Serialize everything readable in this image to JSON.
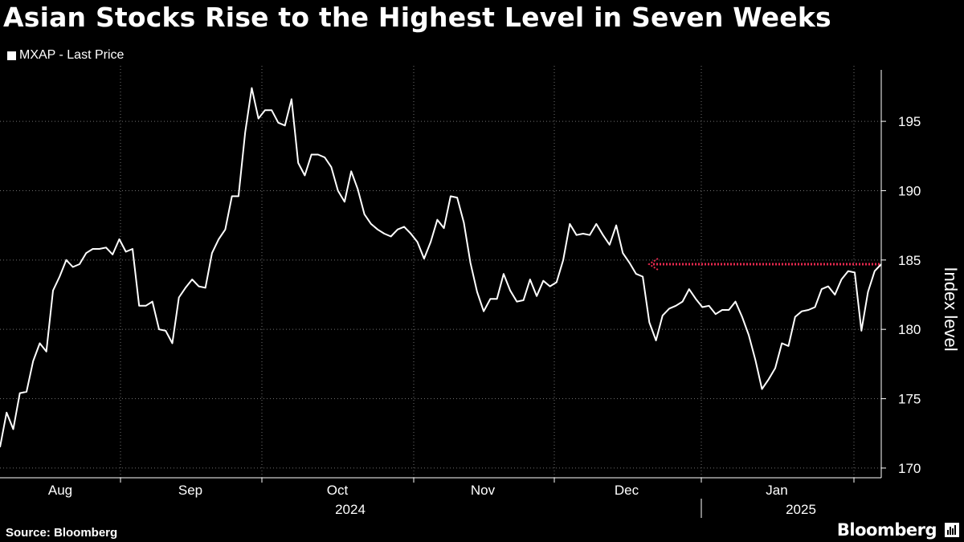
{
  "header": {
    "title": "Asian Stocks Rise to the Highest Level in Seven Weeks"
  },
  "footer": {
    "source": "Source: Bloomberg",
    "brand": "Bloomberg"
  },
  "chart_data": {
    "type": "line",
    "legend": [
      "MXAP - Last Price"
    ],
    "ylabel": "Index level",
    "ylim": [
      169.3,
      199
    ],
    "yticks": [
      170,
      175,
      180,
      185,
      190,
      195
    ],
    "month_labels": [
      "Aug",
      "Sep",
      "Oct",
      "Nov",
      "Dec",
      "Jan"
    ],
    "year_labels": [
      "2024",
      "2025"
    ],
    "grid": true,
    "series": [
      {
        "name": "MXAP - Last Price",
        "color": "#ffffff",
        "values": [
          171.5,
          174.0,
          172.8,
          175.4,
          175.5,
          177.7,
          179.0,
          178.4,
          182.8,
          183.8,
          185.0,
          184.5,
          184.7,
          185.5,
          185.8,
          185.8,
          185.9,
          185.4,
          186.5,
          185.6,
          185.8,
          181.7,
          181.7,
          182.0,
          180.0,
          179.9,
          179.0,
          182.3,
          183.0,
          183.6,
          183.1,
          183.0,
          185.5,
          186.5,
          187.2,
          189.6,
          189.6,
          194.2,
          197.4,
          195.2,
          195.8,
          195.8,
          194.9,
          194.7,
          196.6,
          192.0,
          191.1,
          192.6,
          192.6,
          192.4,
          191.7,
          190.0,
          189.2,
          191.4,
          190.1,
          188.3,
          187.6,
          187.2,
          186.9,
          186.7,
          187.2,
          187.4,
          186.9,
          186.3,
          185.1,
          186.3,
          187.9,
          187.3,
          189.6,
          189.5,
          187.7,
          184.8,
          182.7,
          181.3,
          182.2,
          182.2,
          184.0,
          182.8,
          182.0,
          182.1,
          183.6,
          182.4,
          183.5,
          183.1,
          183.4,
          185.0,
          187.6,
          186.8,
          186.9,
          186.8,
          187.6,
          186.8,
          186.1,
          187.5,
          185.5,
          184.8,
          184.0,
          183.8,
          180.5,
          179.2,
          181.0,
          181.5,
          181.7,
          182.0,
          182.9,
          182.2,
          181.6,
          181.7,
          181.1,
          181.4,
          181.4,
          182.0,
          180.9,
          179.6,
          177.8,
          175.7,
          176.4,
          177.2,
          179.0,
          178.8,
          180.9,
          181.3,
          181.4,
          181.6,
          182.9,
          183.1,
          182.5,
          183.6,
          184.2,
          184.1,
          179.9,
          182.7,
          184.2,
          184.7
        ]
      }
    ],
    "annotation": {
      "type": "dotted-arrow",
      "color": "#e8294f",
      "y": 184.7
    }
  }
}
